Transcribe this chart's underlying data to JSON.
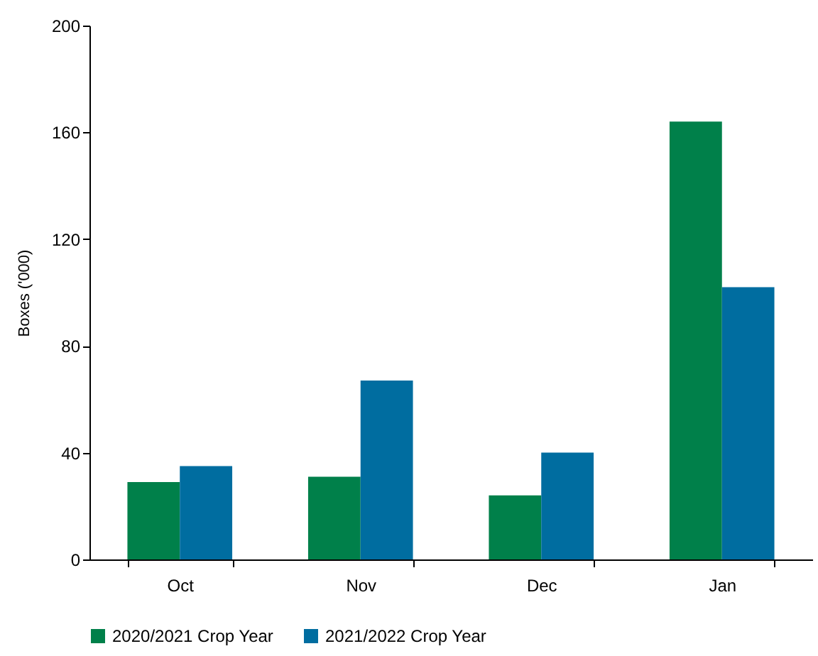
{
  "chart_data": {
    "type": "bar",
    "ylabel": "Boxes ('000)",
    "categories": [
      "Oct",
      "Nov",
      "Dec",
      "Jan"
    ],
    "series": [
      {
        "name": "2020/2021 Crop Year",
        "color": "#00804a",
        "values": [
          29,
          31,
          24,
          164
        ]
      },
      {
        "name": "2021/2022 Crop Year",
        "color": "#006da0",
        "values": [
          35,
          67,
          40,
          102
        ]
      }
    ],
    "ylim": [
      0,
      200
    ],
    "yticks": [
      0,
      40,
      80,
      120,
      160,
      200
    ],
    "legend": "bottom"
  }
}
